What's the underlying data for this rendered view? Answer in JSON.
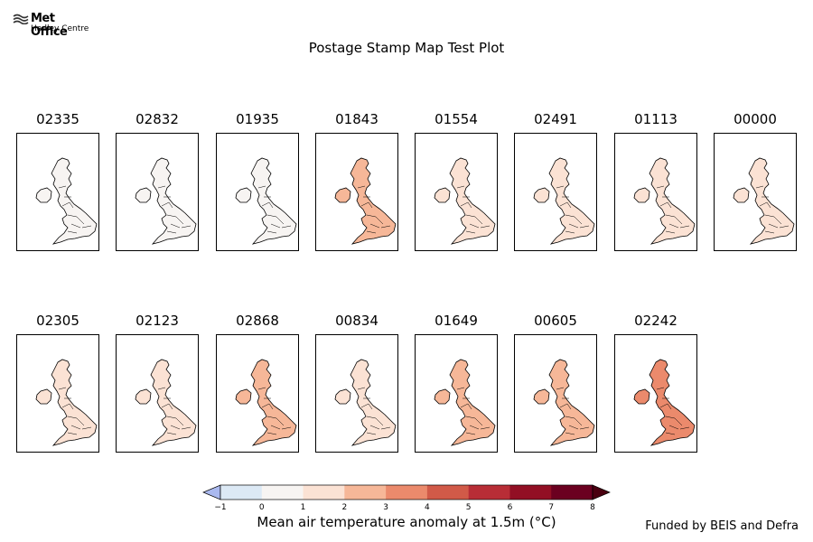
{
  "logo": {
    "name": "Met Office",
    "sub": "Hadley Centre"
  },
  "title": "Postage Stamp Map Test Plot",
  "colorbar": {
    "label": "Mean air temperature anomaly at 1.5m (°C)",
    "ticks": [
      "−1",
      "0",
      "1",
      "2",
      "3",
      "4",
      "5",
      "6",
      "7",
      "8"
    ],
    "colors": [
      "#dce9f5",
      "#f7f4f2",
      "#fbe2d4",
      "#f6b798",
      "#eb8a6c",
      "#d15a48",
      "#b82d36",
      "#920f24",
      "#6b0020"
    ],
    "under_color": "#aab9ef",
    "over_color": "#4a0010"
  },
  "stamps": [
    {
      "id": "02335",
      "level": 0.1
    },
    {
      "id": "02832",
      "level": 0.5
    },
    {
      "id": "01935",
      "level": 0.8
    },
    {
      "id": "01843",
      "level": 2.0
    },
    {
      "id": "01554",
      "level": 1.5
    },
    {
      "id": "02491",
      "level": 1.3
    },
    {
      "id": "01113",
      "level": 1.3
    },
    {
      "id": "00000",
      "level": 1.4
    },
    {
      "id": "02305",
      "level": 1.6
    },
    {
      "id": "02123",
      "level": 1.8
    },
    {
      "id": "02868",
      "level": 2.1
    },
    {
      "id": "00834",
      "level": 1.9
    },
    {
      "id": "01649",
      "level": 2.2
    },
    {
      "id": "00605",
      "level": 2.3
    },
    {
      "id": "02242",
      "level": 3.0
    }
  ],
  "footer": "Funded by BEIS and Defra"
}
